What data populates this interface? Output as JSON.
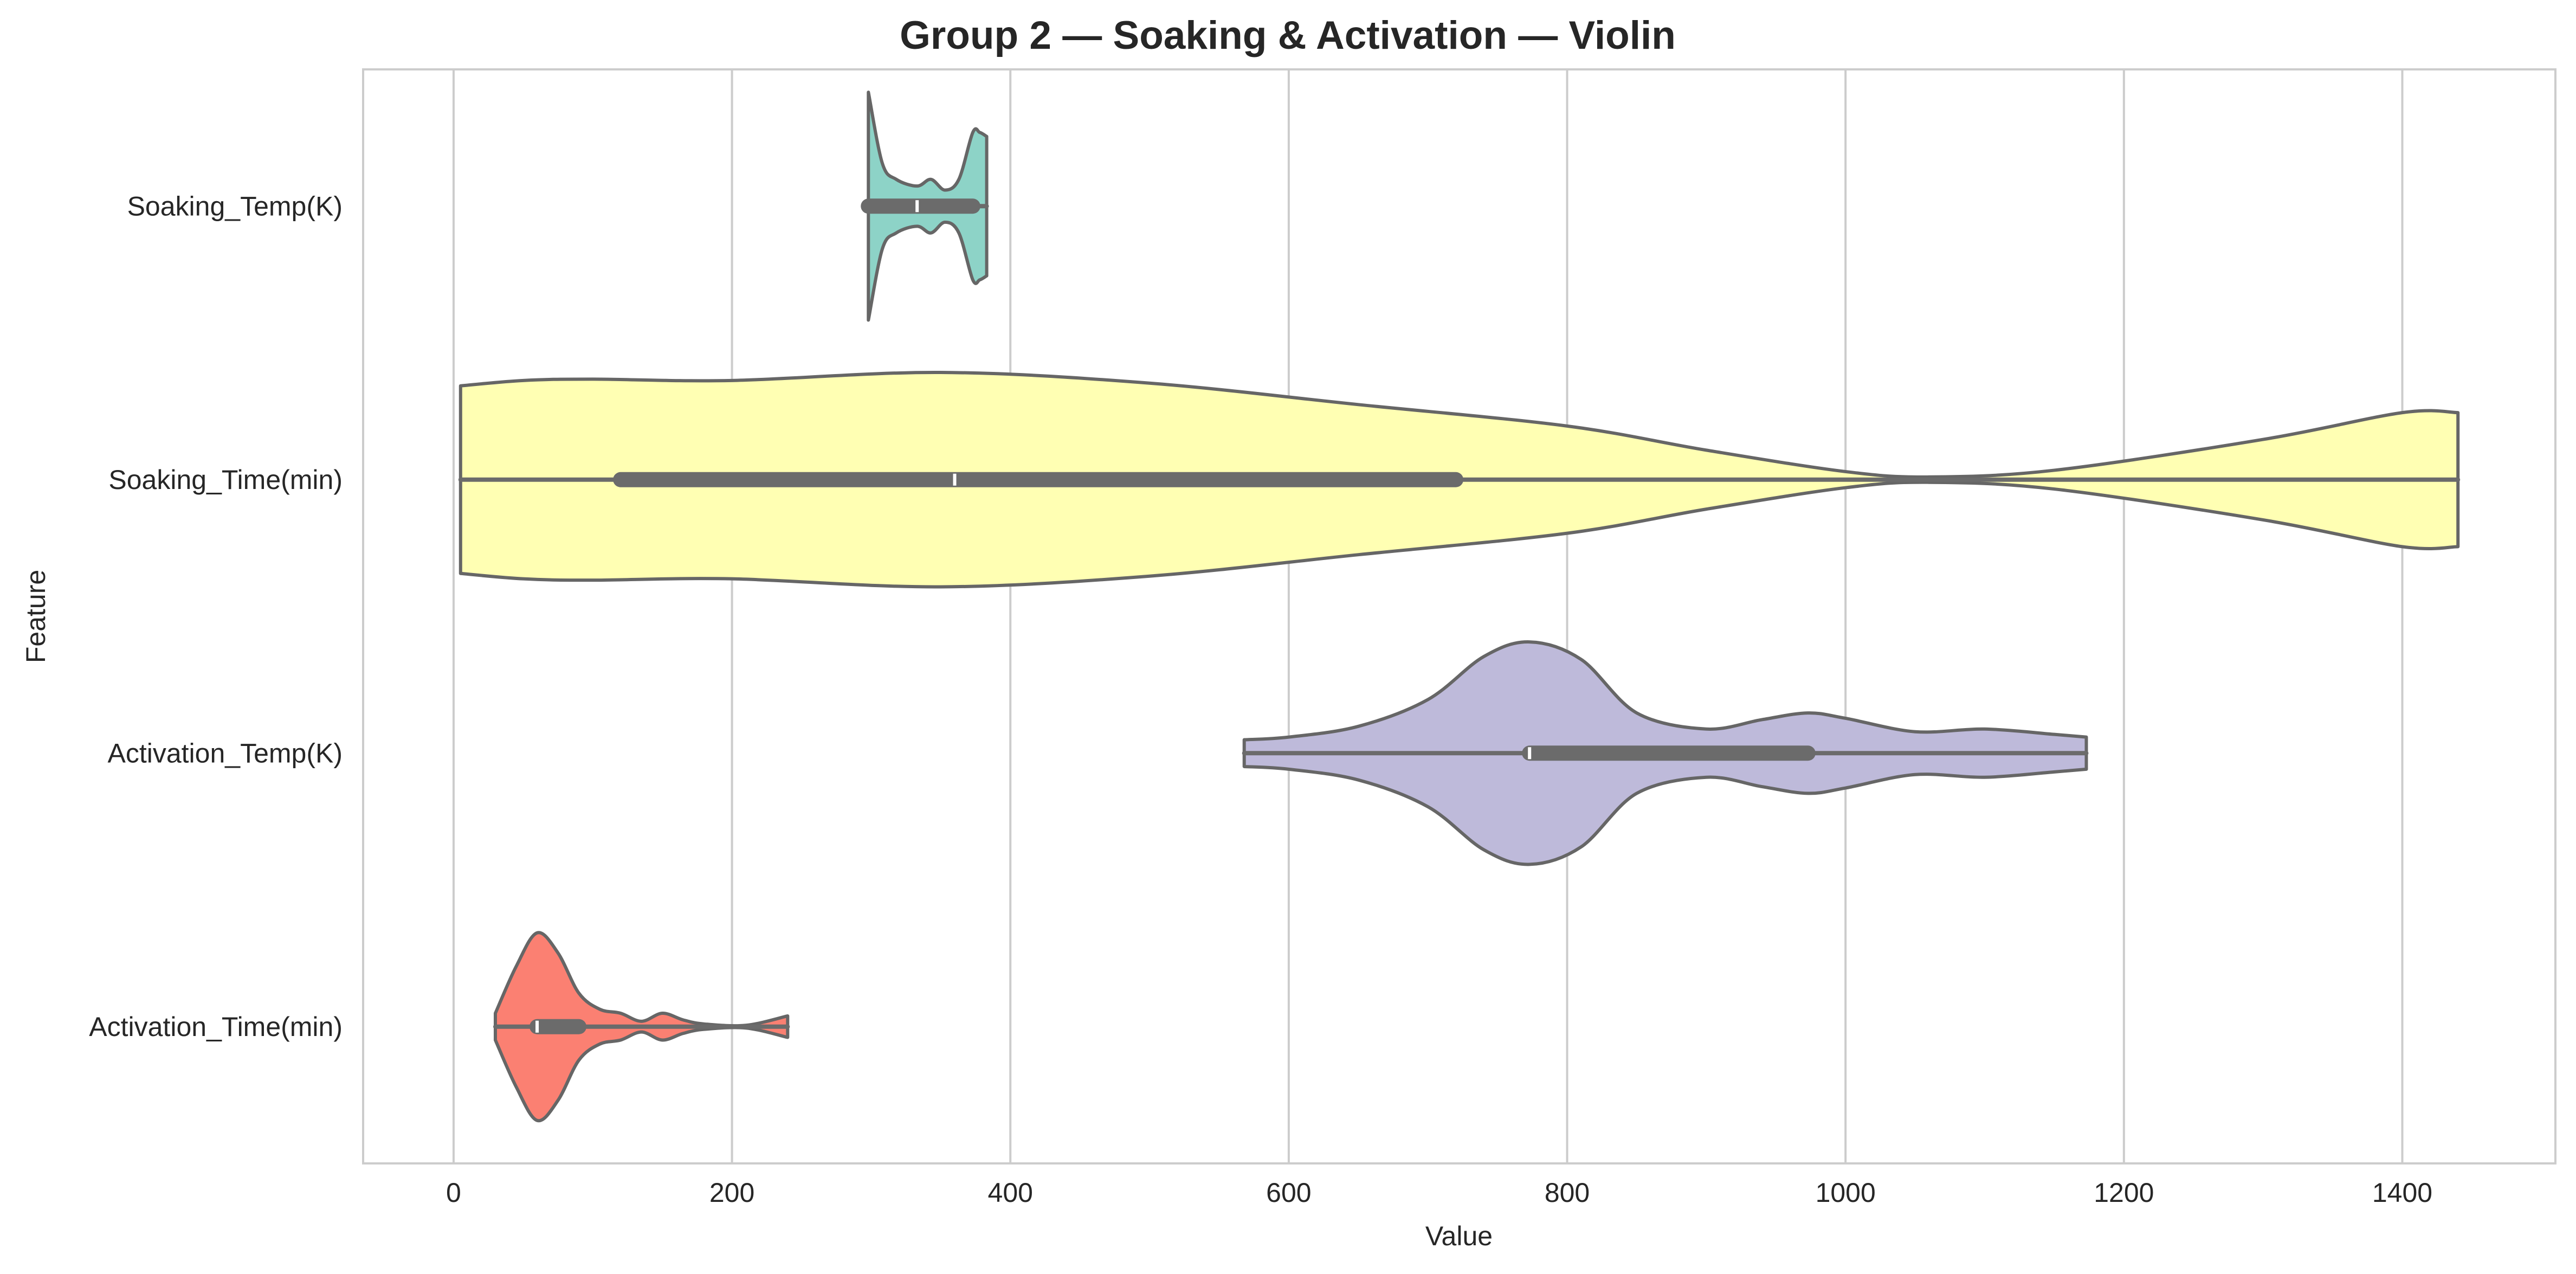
{
  "chart_data": {
    "type": "violin",
    "title": "Group 2 — Soaking & Activation — Violin",
    "xlabel": "Value",
    "ylabel": "Feature",
    "xlim": [
      -65,
      1510
    ],
    "xticks": [
      0,
      200,
      400,
      600,
      800,
      1000,
      1200,
      1400
    ],
    "orientation": "horizontal",
    "grid": "vertical",
    "series": [
      {
        "name": "Soaking_Temp(K)",
        "color": "#8dd3c7",
        "min": 298,
        "q1": 298,
        "median": 333,
        "q3": 373,
        "max": 383,
        "density": [
          [
            298,
            0.85
          ],
          [
            308,
            0.32
          ],
          [
            318,
            0.2
          ],
          [
            333,
            0.15
          ],
          [
            343,
            0.2
          ],
          [
            353,
            0.12
          ],
          [
            363,
            0.2
          ],
          [
            373,
            0.55
          ],
          [
            378,
            0.55
          ],
          [
            383,
            0.52
          ]
        ]
      },
      {
        "name": "Soaking_Time(min)",
        "color": "#ffffb3",
        "min": 5,
        "q1": 120,
        "median": 360,
        "q3": 720,
        "max": 1440,
        "density": [
          [
            5,
            0.7
          ],
          [
            50,
            0.74
          ],
          [
            100,
            0.75
          ],
          [
            200,
            0.74
          ],
          [
            350,
            0.8
          ],
          [
            500,
            0.72
          ],
          [
            650,
            0.56
          ],
          [
            800,
            0.4
          ],
          [
            900,
            0.22
          ],
          [
            1000,
            0.06
          ],
          [
            1060,
            0.02
          ],
          [
            1150,
            0.07
          ],
          [
            1300,
            0.3
          ],
          [
            1400,
            0.5
          ],
          [
            1440,
            0.5
          ]
        ]
      },
      {
        "name": "Activation_Temp(K)",
        "color": "#bebada",
        "min": 568,
        "q1": 773,
        "median": 773,
        "q3": 973,
        "max": 1173,
        "density": [
          [
            568,
            0.1
          ],
          [
            600,
            0.12
          ],
          [
            650,
            0.2
          ],
          [
            700,
            0.4
          ],
          [
            740,
            0.72
          ],
          [
            773,
            0.83
          ],
          [
            810,
            0.7
          ],
          [
            850,
            0.3
          ],
          [
            900,
            0.18
          ],
          [
            940,
            0.25
          ],
          [
            973,
            0.3
          ],
          [
            1000,
            0.26
          ],
          [
            1050,
            0.16
          ],
          [
            1100,
            0.18
          ],
          [
            1150,
            0.14
          ],
          [
            1173,
            0.12
          ]
        ]
      },
      {
        "name": "Activation_Time(min)",
        "color": "#fb8072",
        "min": 30,
        "q1": 60,
        "median": 60,
        "q3": 90,
        "max": 240,
        "density": [
          [
            30,
            0.1
          ],
          [
            45,
            0.45
          ],
          [
            60,
            0.7
          ],
          [
            75,
            0.55
          ],
          [
            90,
            0.25
          ],
          [
            105,
            0.13
          ],
          [
            120,
            0.1
          ],
          [
            135,
            0.04
          ],
          [
            150,
            0.1
          ],
          [
            165,
            0.05
          ],
          [
            180,
            0.02
          ],
          [
            210,
            0.01
          ],
          [
            240,
            0.08
          ]
        ]
      }
    ]
  }
}
